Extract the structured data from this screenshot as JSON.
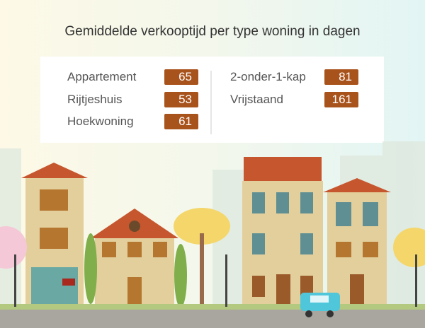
{
  "title": "Gemiddelde verkooptijd per type woning in dagen",
  "left_column": [
    {
      "label": "Appartement",
      "value": "65"
    },
    {
      "label": "Rijtjeshuis",
      "value": "53"
    },
    {
      "label": "Hoekwoning",
      "value": "61"
    }
  ],
  "right_column": [
    {
      "label": "2-onder-1-kap",
      "value": "81"
    },
    {
      "label": "Vrijstaand",
      "value": "161"
    }
  ],
  "colors": {
    "badge": "#a9531c",
    "roof": "#c6562e",
    "wall": "#e3cf9c"
  }
}
